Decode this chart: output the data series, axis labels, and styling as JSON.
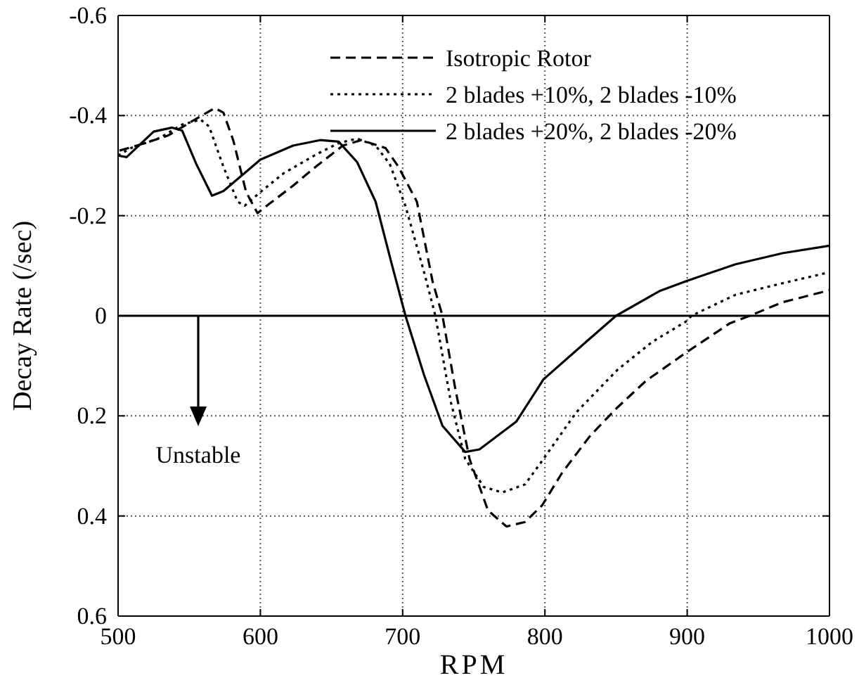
{
  "chart_data": {
    "type": "line",
    "xlabel": "RPM",
    "ylabel": "Decay Rate (/sec)",
    "xlim": [
      500,
      1000
    ],
    "xticks": [
      500,
      600,
      700,
      800,
      900,
      1000
    ],
    "ylim": [
      0.6,
      -0.6
    ],
    "yticks": [
      -0.6,
      -0.4,
      -0.2,
      0,
      0.2,
      0.4,
      0.6
    ],
    "grid": true,
    "legend": "top right",
    "ref_lines": [
      {
        "axis": "y",
        "value": 0,
        "color": "#000000",
        "line_style": "solid"
      }
    ],
    "annotations": [
      "Unstable"
    ],
    "series": [
      {
        "name": "Isotropic Rotor",
        "color": "#000000",
        "line_style": "dashed",
        "x": [
          501,
          519,
          535,
          551,
          568,
          574,
          581,
          590,
          598,
          606,
          623,
          639,
          658,
          671,
          688,
          697,
          710,
          721,
          728,
          737,
          747,
          760,
          773,
          786,
          798,
          812,
          832,
          851,
          871,
          900,
          930,
          944,
          967,
          1000
        ],
        "values": [
          -0.33,
          -0.345,
          -0.36,
          -0.387,
          -0.415,
          -0.406,
          -0.35,
          -0.247,
          -0.205,
          -0.223,
          -0.26,
          -0.298,
          -0.34,
          -0.351,
          -0.335,
          -0.298,
          -0.228,
          -0.069,
          0,
          0.146,
          0.286,
          0.389,
          0.421,
          0.412,
          0.379,
          0.314,
          0.239,
          0.183,
          0.13,
          0.072,
          0.015,
          0,
          -0.027,
          -0.051
        ]
      },
      {
        "name": "2 blades +10%, 2 blades -10%",
        "color": "#000000",
        "line_style": "dotted",
        "x": [
          500,
          509,
          529,
          545,
          558,
          564,
          574,
          584,
          589,
          600,
          616,
          639,
          655,
          668,
          681,
          691,
          702,
          715,
          723,
          734,
          744,
          757,
          770,
          786,
          799,
          822,
          851,
          875,
          900,
          903,
          934,
          967,
          1000
        ],
        "values": [
          -0.32,
          -0.335,
          -0.355,
          -0.382,
          -0.392,
          -0.378,
          -0.298,
          -0.228,
          -0.22,
          -0.247,
          -0.284,
          -0.322,
          -0.345,
          -0.354,
          -0.34,
          -0.303,
          -0.219,
          -0.088,
          0,
          0.174,
          0.286,
          0.342,
          0.353,
          0.337,
          0.286,
          0.193,
          0.108,
          0.053,
          0.01,
          0,
          -0.042,
          -0.065,
          -0.087
        ]
      },
      {
        "name": "2 blades +20%, 2 blades -20%",
        "color": "#000000",
        "line_style": "solid",
        "x": [
          500,
          506,
          525,
          538,
          545,
          555,
          566,
          574,
          600,
          623,
          642,
          655,
          668,
          681,
          692,
          702,
          715,
          728,
          744,
          754,
          780,
          799,
          829,
          850,
          881,
          900,
          934,
          967,
          1000
        ],
        "values": [
          -0.32,
          -0.317,
          -0.368,
          -0.376,
          -0.37,
          -0.303,
          -0.24,
          -0.249,
          -0.312,
          -0.34,
          -0.351,
          -0.348,
          -0.307,
          -0.228,
          -0.107,
          0,
          0.118,
          0.22,
          0.272,
          0.267,
          0.211,
          0.127,
          0.052,
          0,
          -0.05,
          -0.07,
          -0.103,
          -0.125,
          -0.14
        ]
      }
    ]
  }
}
